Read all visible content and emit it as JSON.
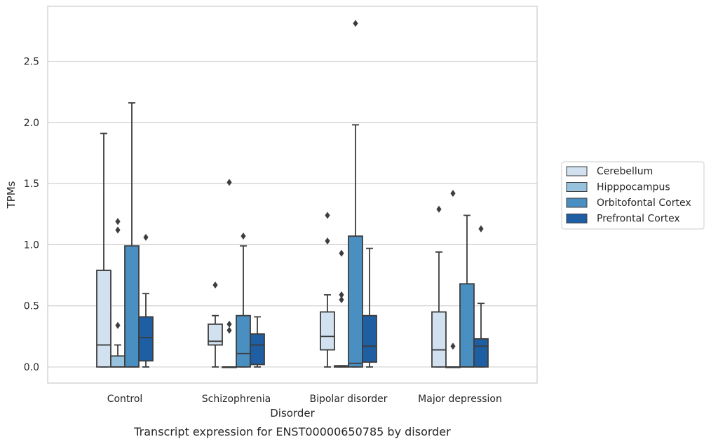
{
  "chart_data": {
    "type": "box",
    "title": "",
    "caption": "Transcript expression for ENST00000650785 by disorder",
    "xlabel": "Disorder",
    "ylabel": "TPMs",
    "ylim": [
      -0.13,
      2.95
    ],
    "yticks": [
      0.0,
      0.5,
      1.0,
      1.5,
      2.0,
      2.5
    ],
    "ytick_labels": [
      "0.0",
      "0.5",
      "1.0",
      "1.5",
      "2.0",
      "2.5"
    ],
    "grid": "horizontal",
    "legend_position": "right",
    "categories": [
      "Control",
      "Schizophrenia",
      "Bipolar disorder",
      "Major depression"
    ],
    "series": [
      {
        "name": "Cerebellum",
        "color": "#d1e1f0",
        "boxes": [
          {
            "whisker_low": 0.0,
            "q1": 0.0,
            "median": 0.18,
            "q3": 0.79,
            "whisker_high": 1.91,
            "outliers": []
          },
          {
            "whisker_low": 0.0,
            "q1": 0.18,
            "median": 0.21,
            "q3": 0.35,
            "whisker_high": 0.42,
            "outliers": [
              0.67
            ]
          },
          {
            "whisker_low": 0.0,
            "q1": 0.14,
            "median": 0.25,
            "q3": 0.45,
            "whisker_high": 0.59,
            "outliers": [
              1.03,
              1.24
            ]
          },
          {
            "whisker_low": 0.0,
            "q1": 0.0,
            "median": 0.14,
            "q3": 0.45,
            "whisker_high": 0.94,
            "outliers": [
              1.29
            ]
          }
        ]
      },
      {
        "name": "Hipppocampus",
        "color": "#98c3df",
        "boxes": [
          {
            "whisker_low": 0.0,
            "q1": 0.0,
            "median": 0.0,
            "q3": 0.09,
            "whisker_high": 0.18,
            "outliers": [
              0.34,
              1.12,
              1.19
            ]
          },
          {
            "whisker_low": 0.0,
            "q1": 0.0,
            "median": 0.0,
            "q3": 0.0,
            "whisker_high": 0.0,
            "outliers": [
              0.3,
              0.35,
              1.51
            ]
          },
          {
            "whisker_low": 0.0,
            "q1": 0.0,
            "median": 0.0,
            "q3": 0.01,
            "whisker_high": 0.01,
            "outliers": [
              0.55,
              0.59,
              0.93
            ]
          },
          {
            "whisker_low": 0.0,
            "q1": 0.0,
            "median": 0.0,
            "q3": 0.0,
            "whisker_high": 0.0,
            "outliers": [
              0.17,
              1.42
            ]
          }
        ]
      },
      {
        "name": "Orbitofontal Cortex",
        "color": "#4a8fc2",
        "boxes": [
          {
            "whisker_low": 0.0,
            "q1": 0.0,
            "median": 0.0,
            "q3": 0.99,
            "whisker_high": 2.16,
            "outliers": []
          },
          {
            "whisker_low": 0.0,
            "q1": 0.0,
            "median": 0.11,
            "q3": 0.42,
            "whisker_high": 0.99,
            "outliers": [
              1.07
            ]
          },
          {
            "whisker_low": 0.0,
            "q1": 0.0,
            "median": 0.03,
            "q3": 1.07,
            "whisker_high": 1.98,
            "outliers": [
              2.81
            ]
          },
          {
            "whisker_low": 0.0,
            "q1": 0.0,
            "median": 0.0,
            "q3": 0.68,
            "whisker_high": 1.24,
            "outliers": []
          }
        ]
      },
      {
        "name": "Prefrontal Cortex",
        "color": "#1e5fa4",
        "boxes": [
          {
            "whisker_low": 0.0,
            "q1": 0.05,
            "median": 0.24,
            "q3": 0.41,
            "whisker_high": 0.6,
            "outliers": [
              1.06
            ]
          },
          {
            "whisker_low": 0.0,
            "q1": 0.02,
            "median": 0.18,
            "q3": 0.27,
            "whisker_high": 0.41,
            "outliers": []
          },
          {
            "whisker_low": 0.0,
            "q1": 0.04,
            "median": 0.17,
            "q3": 0.42,
            "whisker_high": 0.97,
            "outliers": []
          },
          {
            "whisker_low": 0.0,
            "q1": 0.0,
            "median": 0.17,
            "q3": 0.23,
            "whisker_high": 0.52,
            "outliers": [
              1.13
            ]
          }
        ]
      }
    ]
  }
}
